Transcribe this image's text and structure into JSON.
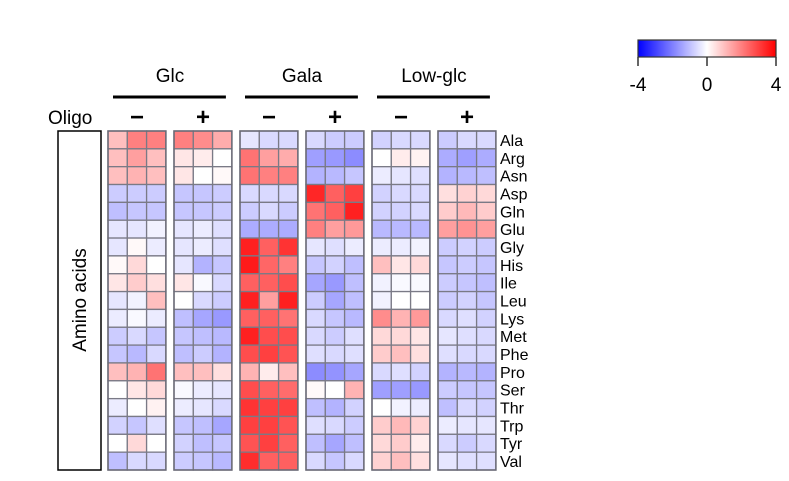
{
  "chart_data": {
    "type": "heatmap",
    "groups": [
      {
        "label": "Glc",
        "conditions": [
          "−",
          "+"
        ]
      },
      {
        "label": "Gala",
        "conditions": [
          "−",
          "+"
        ]
      },
      {
        "label": "Low-glc",
        "conditions": [
          "−",
          "+"
        ]
      }
    ],
    "condition_axis_label": "Oligo",
    "row_axis_label": "Amino acids",
    "rows": [
      "Ala",
      "Arg",
      "Asn",
      "Asp",
      "Gln",
      "Glu",
      "Gly",
      "His",
      "Ile",
      "Leu",
      "Lys",
      "Met",
      "Phe",
      "Pro",
      "Ser",
      "Thr",
      "Trp",
      "Tyr",
      "Val"
    ],
    "replicates_per_condition": 3,
    "values": [
      [
        1,
        2,
        2,
        2,
        1.8,
        1.3,
        -0.4,
        -0.6,
        -0.6,
        -0.6,
        -0.8,
        -0.8,
        -0.7,
        -0.6,
        -0.6,
        -0.8,
        -0.6,
        -0.6
      ],
      [
        1,
        1.5,
        1,
        0.4,
        0.3,
        0,
        2.2,
        1.5,
        1.3,
        -1.5,
        -1.6,
        -1.8,
        0,
        0.3,
        0.2,
        -1.3,
        -1.5,
        -1.3
      ],
      [
        1,
        1.2,
        1,
        0.4,
        0,
        0.1,
        2.2,
        2,
        2,
        -1.2,
        -1.1,
        -0.9,
        -0.3,
        -0.4,
        -0.5,
        -1.2,
        -1.1,
        -1
      ],
      [
        -0.8,
        -0.8,
        -0.8,
        -0.9,
        -0.9,
        -0.8,
        -0.6,
        -0.6,
        -0.6,
        3.4,
        2.5,
        3,
        -0.7,
        -0.6,
        -0.6,
        0.5,
        0.7,
        0.6
      ],
      [
        -1,
        -0.9,
        -0.9,
        -0.9,
        -0.9,
        -0.8,
        -0.8,
        -0.6,
        -0.8,
        2.2,
        2.5,
        3.5,
        -0.7,
        -0.7,
        -0.6,
        0.8,
        1.1,
        0.8
      ],
      [
        -0.4,
        -0.4,
        -0.2,
        -0.4,
        -0.3,
        -0.5,
        -1.3,
        -1.3,
        -1.3,
        2,
        1.5,
        1.6,
        -1.1,
        -1.1,
        -1.1,
        1.5,
        1.7,
        1.5
      ],
      [
        -0.4,
        0.1,
        -0.3,
        -0.4,
        -0.3,
        -0.5,
        3.5,
        2.5,
        3.2,
        -0.4,
        -0.5,
        -0.3,
        -0.3,
        -0.3,
        -0.2,
        -0.8,
        -0.7,
        -0.8
      ],
      [
        0.1,
        0.6,
        0,
        -0.4,
        -1.2,
        -0.9,
        3.6,
        2.4,
        2,
        -0.9,
        -0.7,
        -1,
        1,
        0.4,
        0.6,
        -0.9,
        -0.8,
        -0.9
      ],
      [
        0.4,
        0.8,
        0.5,
        0.4,
        -0.1,
        -0.6,
        2.5,
        2.5,
        2.8,
        -1.4,
        -1.6,
        -1,
        -0.2,
        -0.1,
        -0.1,
        -0.8,
        -0.9,
        -1
      ],
      [
        -0.4,
        -0.2,
        1,
        0,
        -0.6,
        -0.8,
        3.5,
        1.5,
        3.5,
        -0.8,
        -1.4,
        -1,
        -0.2,
        0,
        0,
        -0.8,
        -0.7,
        -0.9
      ],
      [
        -0.3,
        -0.1,
        -0.3,
        -1,
        -1.4,
        -1.6,
        2.5,
        2.5,
        2.2,
        -0.6,
        -0.9,
        -1.1,
        1.8,
        1.2,
        1.6,
        -0.6,
        -0.5,
        -0.7
      ],
      [
        -0.8,
        -0.6,
        -0.9,
        -0.9,
        -1,
        -1.1,
        3.5,
        2.8,
        2.8,
        -0.6,
        -0.8,
        -0.5,
        0.6,
        0.6,
        0.4,
        -0.4,
        -0.5,
        -0.6
      ],
      [
        -0.9,
        -1.1,
        -0.6,
        -1,
        -0.8,
        -1.2,
        2.8,
        3,
        2.7,
        -0.5,
        -0.6,
        -0.5,
        0.8,
        1,
        0.5,
        -0.5,
        -0.6,
        -0.6
      ],
      [
        1,
        1.2,
        2.2,
        1,
        1,
        0.5,
        1.2,
        0.3,
        1,
        -1.8,
        -1.7,
        -1.4,
        -0.6,
        -0.5,
        -0.7,
        -1.2,
        -1.1,
        -1.2
      ],
      [
        0,
        0.4,
        0.6,
        -0.1,
        -0.3,
        -0.4,
        2.8,
        2.5,
        2.3,
        0.1,
        0,
        1.2,
        -1.5,
        -1.5,
        -1.6,
        -0.8,
        -0.9,
        -0.9
      ],
      [
        -0.3,
        0,
        0.2,
        -0.3,
        -0.4,
        -0.6,
        3.2,
        3,
        3,
        -1,
        -1.2,
        -0.7,
        0,
        -0.2,
        -0.3,
        -1,
        -0.6,
        -0.7
      ],
      [
        -0.7,
        -0.9,
        -0.5,
        -0.9,
        -1,
        -1.4,
        3,
        3,
        2.7,
        -0.5,
        -0.6,
        -0.8,
        0.8,
        1.1,
        0.7,
        -0.3,
        -0.4,
        -0.4
      ],
      [
        0,
        0.6,
        0,
        -0.7,
        -1,
        -0.9,
        2.7,
        3,
        2.5,
        -1,
        -1.4,
        -1,
        0.6,
        0.8,
        0.3,
        -0.6,
        -0.8,
        -0.6
      ],
      [
        -1,
        -0.6,
        -0.6,
        -0.8,
        -0.9,
        -1.1,
        3.3,
        2.5,
        2.5,
        -0.6,
        -0.9,
        -0.6,
        0.7,
        1,
        0.5,
        -0.4,
        -0.5,
        -0.5
      ]
    ],
    "color_scale": {
      "min": -4,
      "mid": 0,
      "max": 4,
      "low_color": "#0000ff",
      "mid_color": "#ffffff",
      "high_color": "#ff0000"
    },
    "legend": {
      "ticks": [
        "-4",
        "0",
        "4"
      ],
      "placement": "top-right"
    }
  }
}
